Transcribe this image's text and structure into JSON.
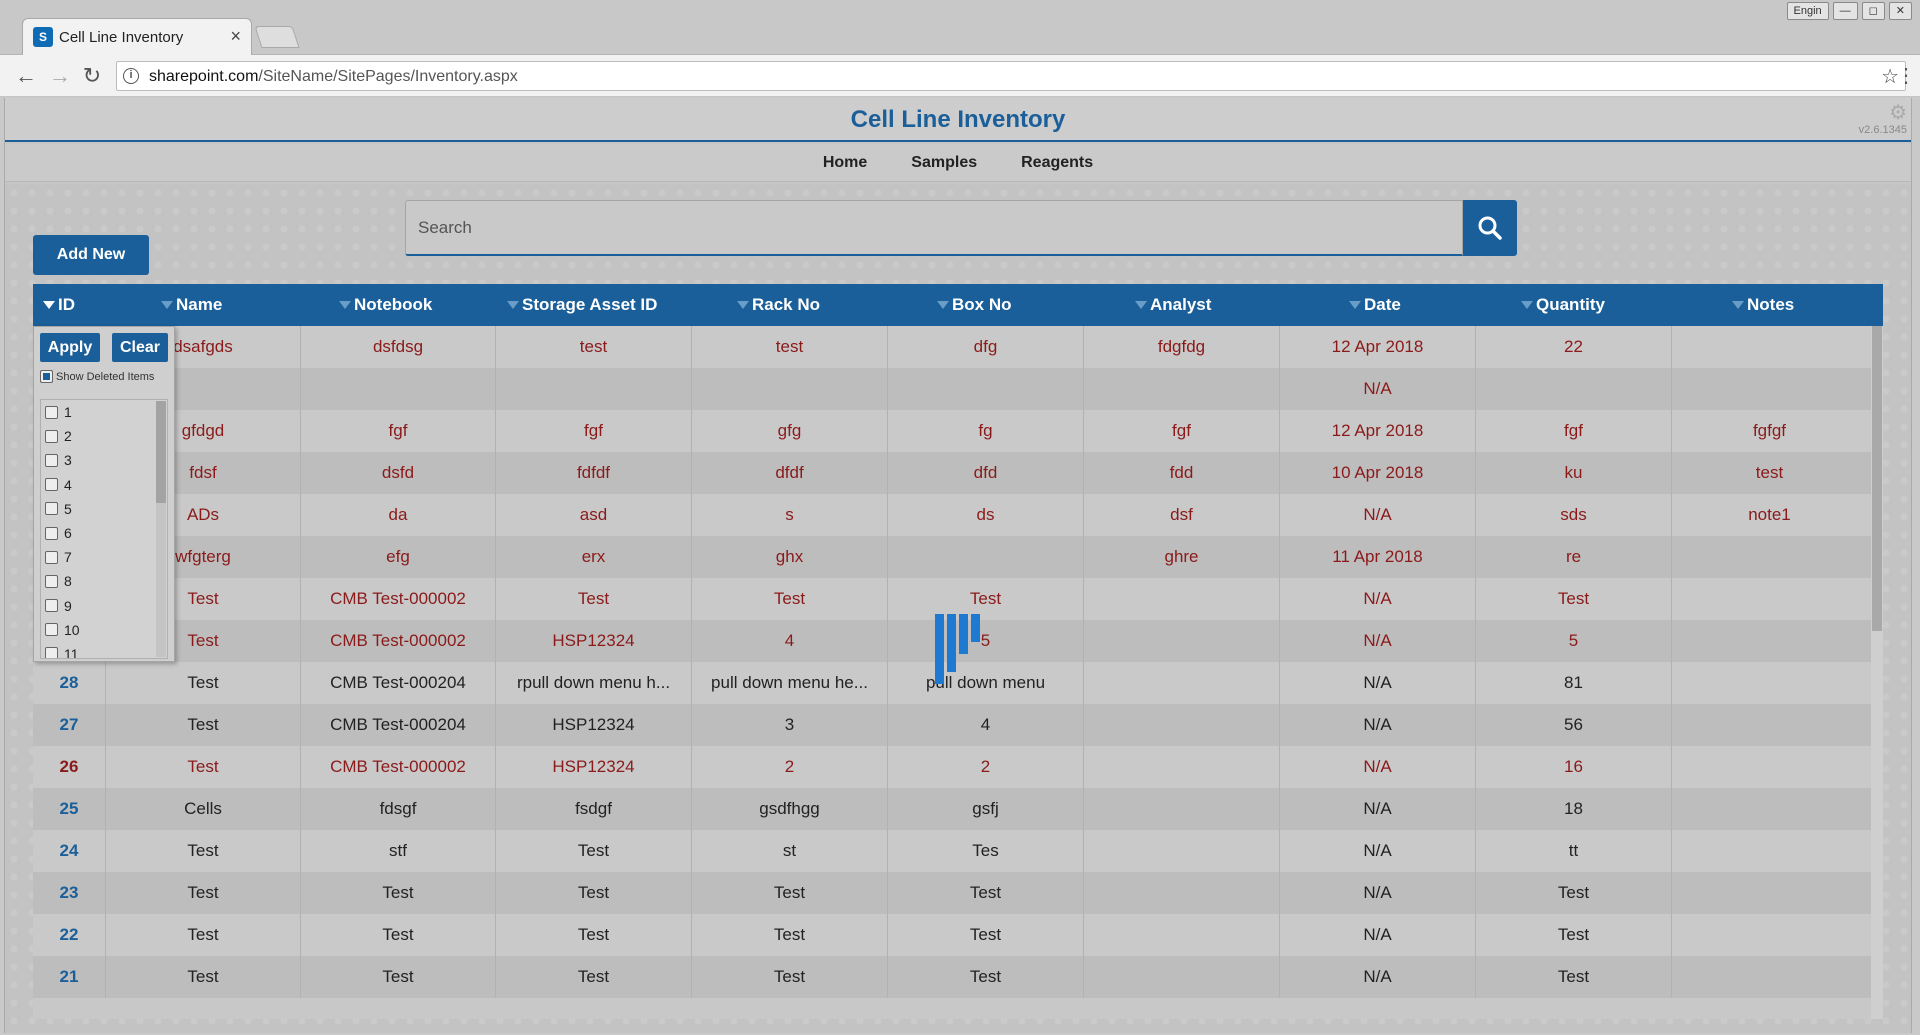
{
  "browser": {
    "tab_title": "Cell Line Inventory",
    "tab_close": "×",
    "favicon": "S",
    "url_host": "sharepoint.com",
    "url_path": "/SiteName/SitePages/Inventory.aspx",
    "window_controls": [
      "Engin",
      "—",
      "◻",
      "✕"
    ]
  },
  "page": {
    "title": "Cell Line Inventory",
    "version": "v2.6.1345",
    "nav": [
      "Home",
      "Samples",
      "Reagents"
    ]
  },
  "search": {
    "placeholder": "Search"
  },
  "actions": {
    "add_new": "Add New"
  },
  "table": {
    "columns": [
      "ID",
      "Name",
      "Notebook",
      "Storage Asset ID",
      "Rack No",
      "Box No",
      "Analyst",
      "Date",
      "Quantity",
      "Notes"
    ],
    "rows": [
      {
        "id": "",
        "name": "dsafgds",
        "notebook": "dsfdsg",
        "asset": "test",
        "rack": "test",
        "box": "dfg",
        "analyst": "fdgfdg",
        "date": "12 Apr 2018",
        "qty": "22",
        "notes": "",
        "deleted": true
      },
      {
        "id": "",
        "name": "",
        "notebook": "",
        "asset": "",
        "rack": "",
        "box": "",
        "analyst": "",
        "date": "N/A",
        "qty": "",
        "notes": "",
        "deleted": true
      },
      {
        "id": "",
        "name": "gfdgd",
        "notebook": "fgf",
        "asset": "fgf",
        "rack": "gfg",
        "box": "fg",
        "analyst": "fgf",
        "date": "12 Apr 2018",
        "qty": "fgf",
        "notes": "fgfgf",
        "deleted": true
      },
      {
        "id": "",
        "name": "fdsf",
        "notebook": "dsfd",
        "asset": "fdfdf",
        "rack": "dfdf",
        "box": "dfd",
        "analyst": "fdd",
        "date": "10 Apr 2018",
        "qty": "ku",
        "notes": "test",
        "deleted": true
      },
      {
        "id": "",
        "name": "ADs",
        "notebook": "da",
        "asset": "asd",
        "rack": "s",
        "box": "ds",
        "analyst": "dsf",
        "date": "N/A",
        "qty": "sds",
        "notes": "note1",
        "deleted": true
      },
      {
        "id": "",
        "name": "wfgterg",
        "notebook": "efg",
        "asset": "erx",
        "rack": "ghx",
        "box": "",
        "analyst": "ghre",
        "date": "11 Apr 2018",
        "qty": "re",
        "notes": "",
        "deleted": true
      },
      {
        "id": "",
        "name": "Test",
        "notebook": "CMB Test-000002",
        "asset": "Test",
        "rack": "Test",
        "box": "Test",
        "analyst": "",
        "date": "N/A",
        "qty": "Test",
        "notes": "",
        "deleted": true
      },
      {
        "id": "",
        "name": "Test",
        "notebook": "CMB Test-000002",
        "asset": "HSP12324",
        "rack": "4",
        "box": "5",
        "analyst": "",
        "date": "N/A",
        "qty": "5",
        "notes": "",
        "deleted": true
      },
      {
        "id": "28",
        "name": "Test",
        "notebook": "CMB Test-000204",
        "asset": "rpull down menu h...",
        "rack": "pull down menu he...",
        "box": "pull down menu",
        "analyst": "",
        "date": "N/A",
        "qty": "81",
        "notes": "",
        "deleted": false
      },
      {
        "id": "27",
        "name": "Test",
        "notebook": "CMB Test-000204",
        "asset": "HSP12324",
        "rack": "3",
        "box": "4",
        "analyst": "",
        "date": "N/A",
        "qty": "56",
        "notes": "",
        "deleted": false
      },
      {
        "id": "26",
        "name": "Test",
        "notebook": "CMB Test-000002",
        "asset": "HSP12324",
        "rack": "2",
        "box": "2",
        "analyst": "",
        "date": "N/A",
        "qty": "16",
        "notes": "",
        "deleted": true
      },
      {
        "id": "25",
        "name": "Cells",
        "notebook": "fdsgf",
        "asset": "fsdgf",
        "rack": "gsdfhgg",
        "box": "gsfj",
        "analyst": "",
        "date": "N/A",
        "qty": "18",
        "notes": "",
        "deleted": false
      },
      {
        "id": "24",
        "name": "Test",
        "notebook": "stf",
        "asset": "Test",
        "rack": "st",
        "box": "Tes",
        "analyst": "",
        "date": "N/A",
        "qty": "tt",
        "notes": "",
        "deleted": false
      },
      {
        "id": "23",
        "name": "Test",
        "notebook": "Test",
        "asset": "Test",
        "rack": "Test",
        "box": "Test",
        "analyst": "",
        "date": "N/A",
        "qty": "Test",
        "notes": "",
        "deleted": false
      },
      {
        "id": "22",
        "name": "Test",
        "notebook": "Test",
        "asset": "Test",
        "rack": "Test",
        "box": "Test",
        "analyst": "",
        "date": "N/A",
        "qty": "Test",
        "notes": "",
        "deleted": false
      },
      {
        "id": "21",
        "name": "Test",
        "notebook": "Test",
        "asset": "Test",
        "rack": "Test",
        "box": "Test",
        "analyst": "",
        "date": "N/A",
        "qty": "Test",
        "notes": "",
        "deleted": false
      }
    ]
  },
  "filter_popup": {
    "apply": "Apply",
    "clear": "Clear",
    "show_deleted": "Show Deleted Items",
    "show_deleted_checked": true,
    "ids": [
      "1",
      "2",
      "3",
      "4",
      "5",
      "6",
      "7",
      "8",
      "9",
      "10",
      "11"
    ]
  },
  "colors": {
    "accent": "#1a5f99",
    "deleted_text": "#8b1a1a",
    "spinner": "#1e7ad0"
  },
  "icons": {
    "search": "search-icon",
    "settings": "gear-icon",
    "filter": "filter-icon"
  }
}
